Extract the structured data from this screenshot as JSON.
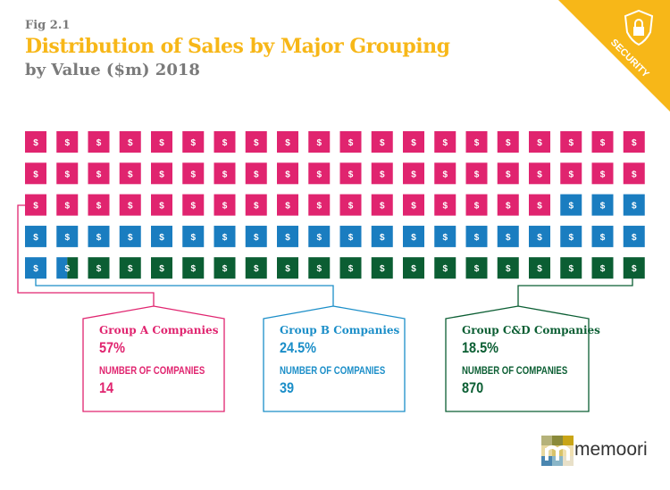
{
  "header": {
    "fig": "Fig 2.1",
    "title": "Distribution of Sales by Major Grouping",
    "subtitle": "by Value ($m) 2018"
  },
  "badge": {
    "label": "SECURITY",
    "icon": "shield-lock-icon",
    "color": "#f7b718"
  },
  "chart_data": {
    "type": "waffle",
    "unit_symbol": "$",
    "total_units": 100,
    "rows": 5,
    "columns": 20,
    "series": [
      {
        "name": "Group A Companies",
        "value": 57,
        "color": "#e0246f"
      },
      {
        "name": "Group B Companies",
        "value": 24.5,
        "color": "#1a7dc0"
      },
      {
        "name": "Group C&D Companies",
        "value": 18.5,
        "color": "#0b5e33"
      }
    ]
  },
  "groups": [
    {
      "name": "Group A Companies",
      "percent": "57%",
      "count_label": "NUMBER OF COMPANIES",
      "count": "14",
      "color": "#e0246f"
    },
    {
      "name": "Group B Companies",
      "percent": "24.5%",
      "count_label": "NUMBER OF COMPANIES",
      "count": "39",
      "color": "#1b8ec8"
    },
    {
      "name": "Group C&D Companies",
      "percent": "18.5%",
      "count_label": "NUMBER OF COMPANIES",
      "count": "870",
      "color": "#0b5e33"
    }
  ],
  "logo": {
    "text": "memoori"
  }
}
